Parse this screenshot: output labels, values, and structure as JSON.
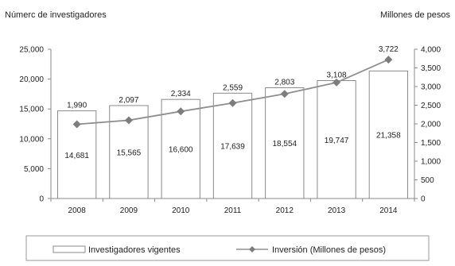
{
  "chart_data": {
    "type": "bar",
    "categories": [
      "2008",
      "2009",
      "2010",
      "2011",
      "2012",
      "2013",
      "2014"
    ],
    "series": [
      {
        "name": "Investigadores vigentes",
        "type": "bar",
        "axis": "left",
        "values": [
          14681,
          15565,
          16600,
          17639,
          18554,
          19747,
          21358
        ],
        "labels": [
          "14,681",
          "15,565",
          "16,600",
          "17,639",
          "18,554",
          "19,747",
          "21,358"
        ]
      },
      {
        "name": "Inversión (Millones de pesos)",
        "type": "line",
        "axis": "right",
        "values": [
          1990,
          2097,
          2334,
          2559,
          2803,
          3108,
          3722
        ],
        "labels": [
          "1,990",
          "2,097",
          "2,334",
          "2,559",
          "2,803",
          "3,108",
          "3,722"
        ]
      }
    ],
    "ylabel": "Númerc de investigadores",
    "y2label": "Millones  de pesos",
    "ylim": [
      0,
      25000
    ],
    "y2lim": [
      0,
      4000
    ],
    "yticks": [
      "0",
      "5,000",
      "10,000",
      "15,000",
      "20,000",
      "25,000"
    ],
    "y2ticks": [
      "0",
      "500",
      "1,000",
      "1,500",
      "2,000",
      "2,500",
      "3,000",
      "3,500",
      "4,000"
    ],
    "grid": false,
    "legend_position": "bottom",
    "colors": {
      "bar_fill": "#ffffff",
      "bar_stroke": "#8a8a8a",
      "line": "#8f8f8f",
      "marker": "#7d7d7d"
    }
  }
}
